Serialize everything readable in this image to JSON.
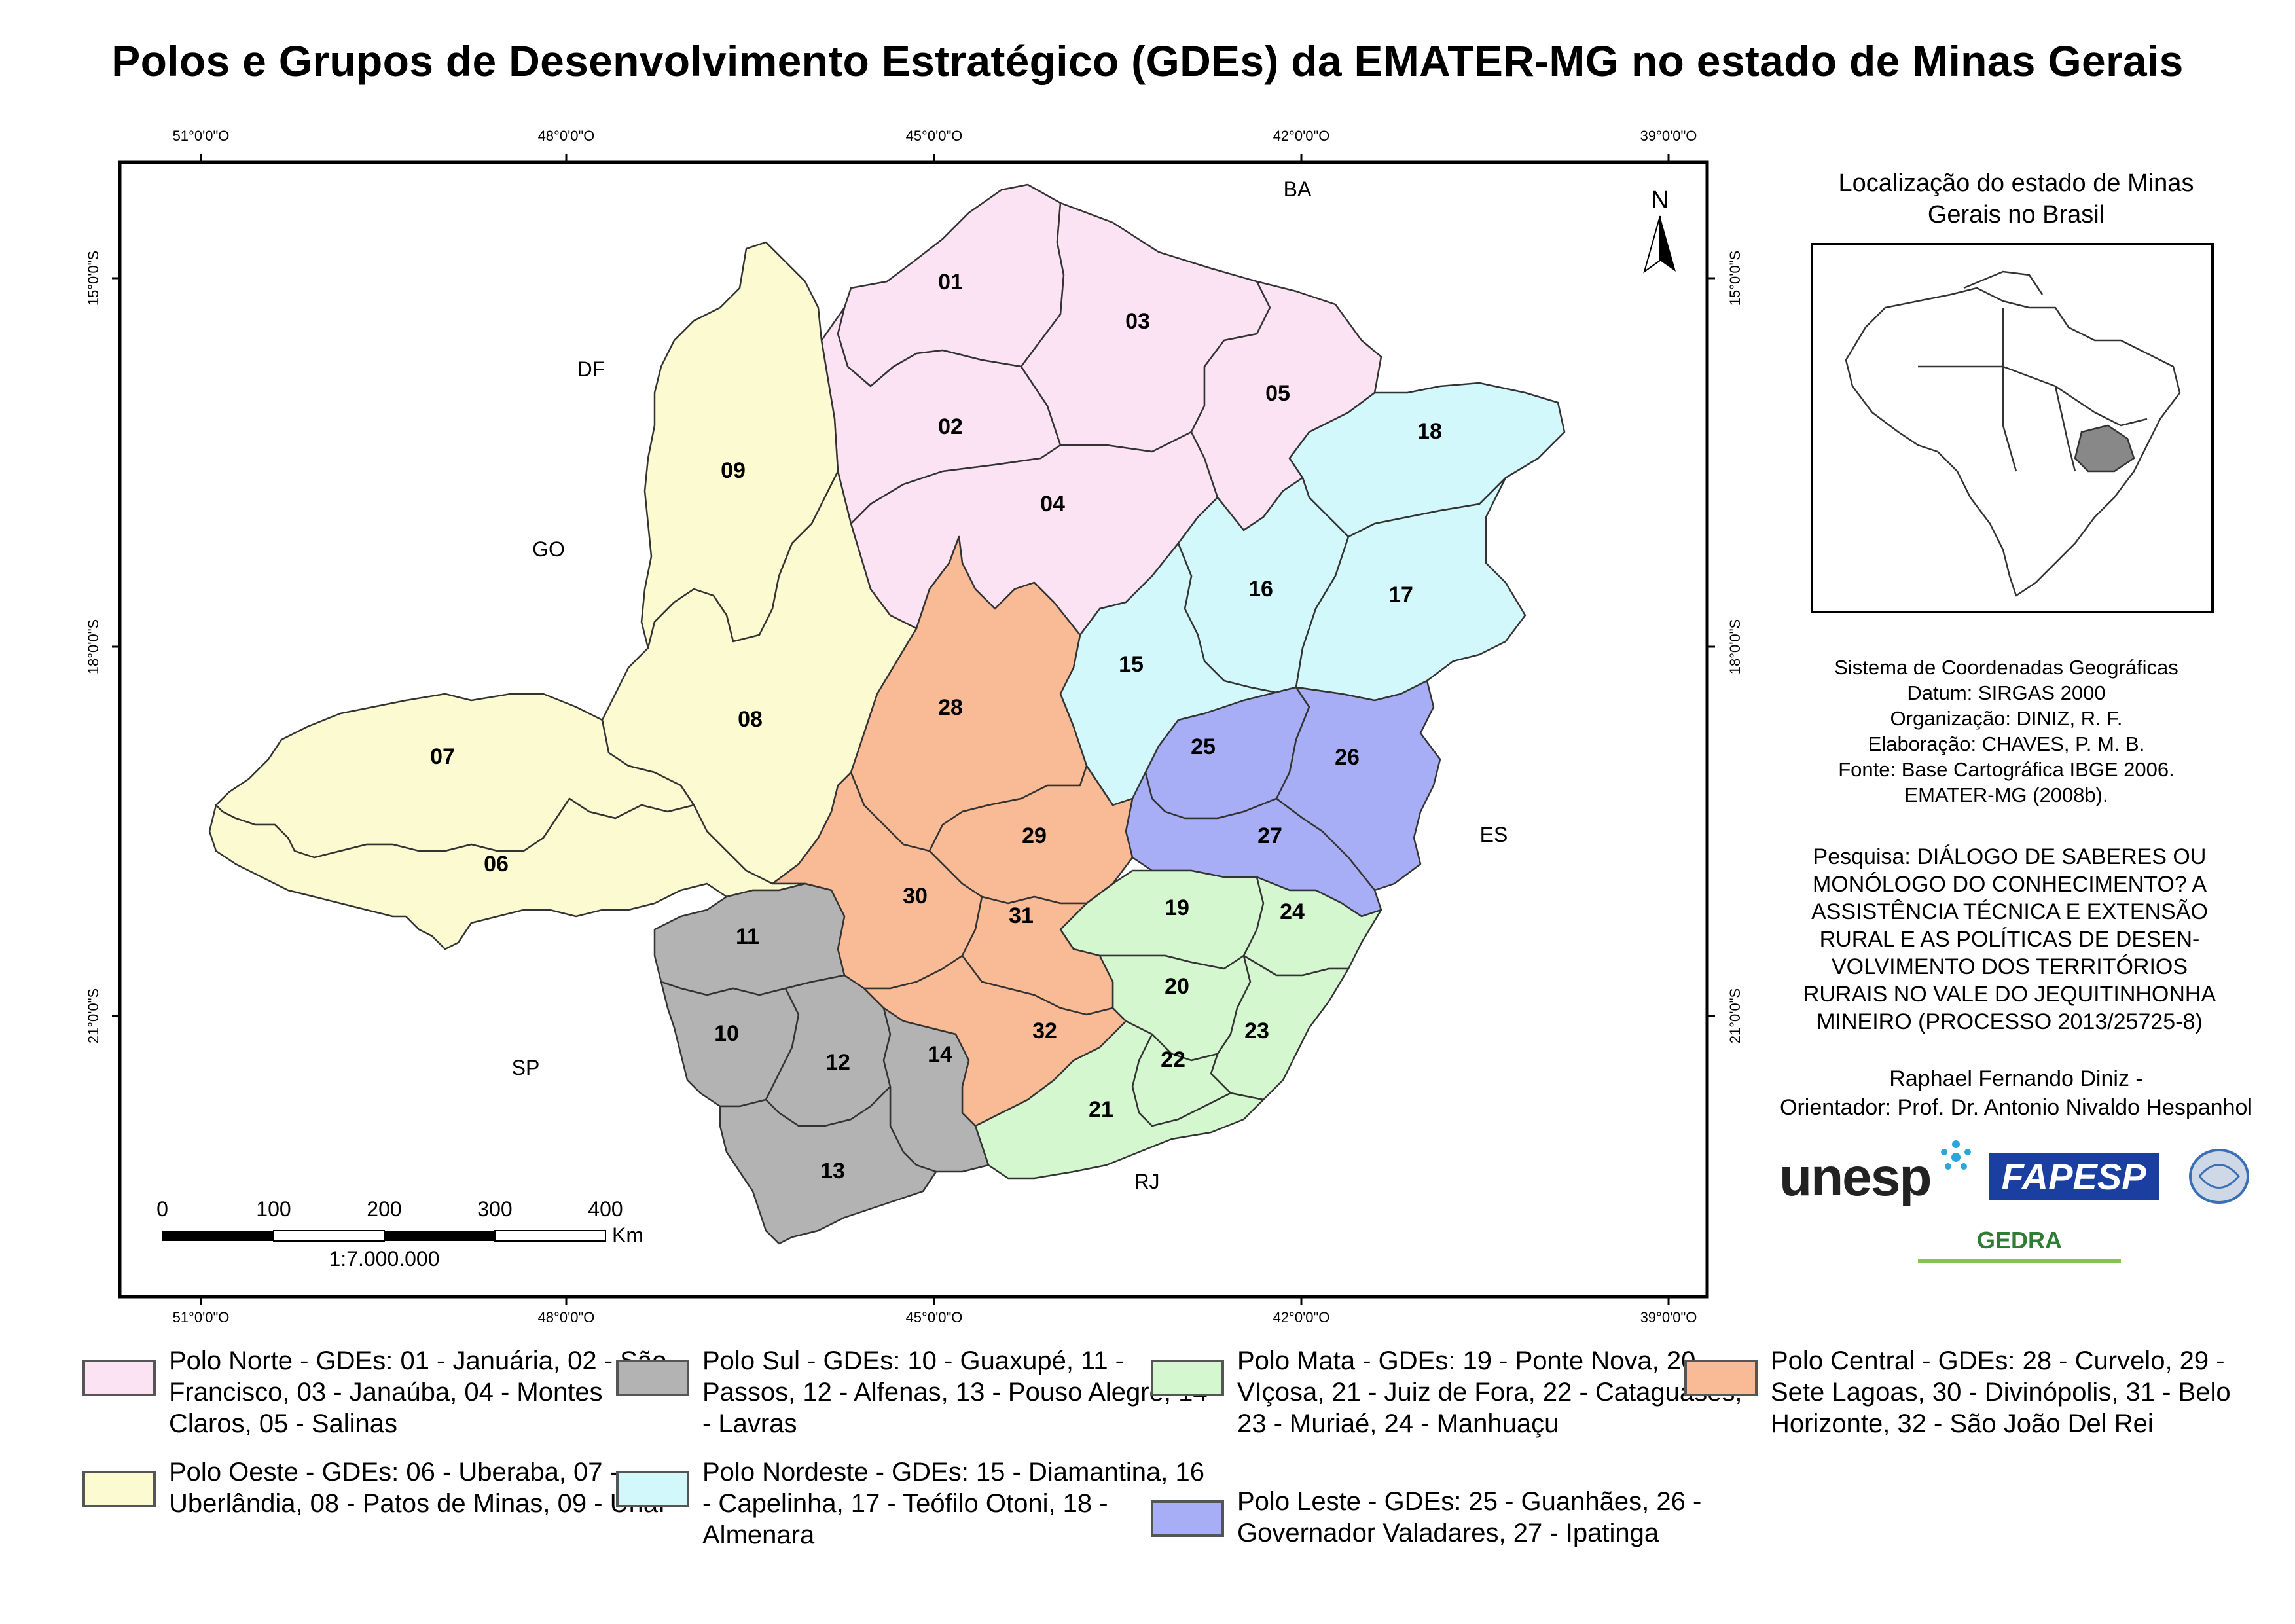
{
  "title": "Polos e Grupos de Desenvolvimento Estratégico (GDEs) da EMATER-MG no estado de Minas Gerais",
  "coords": {
    "top": [
      "51°0'0\"O",
      "48°0'0\"O",
      "45°0'0\"O",
      "42°0'0\"O",
      "39°0'0\"O"
    ],
    "bottom": [
      "51°0'0\"O",
      "48°0'0\"O",
      "45°0'0\"O",
      "42°0'0\"O",
      "39°0'0\"O"
    ],
    "left": [
      "15°0'0\"S",
      "18°0'0\"S",
      "21°0'0\"S"
    ],
    "right": [
      "15°0'0\"S",
      "18°0'0\"S",
      "21°0'0\"S"
    ]
  },
  "neighbors": {
    "ba": "BA",
    "df": "DF",
    "go": "GO",
    "sp": "SP",
    "rj": "RJ",
    "es": "ES"
  },
  "regions": {
    "r01": "01",
    "r02": "02",
    "r03": "03",
    "r04": "04",
    "r05": "05",
    "r06": "06",
    "r07": "07",
    "r08": "08",
    "r09": "09",
    "r10": "10",
    "r11": "11",
    "r12": "12",
    "r13": "13",
    "r14": "14",
    "r15": "15",
    "r16": "16",
    "r17": "17",
    "r18": "18",
    "r19": "19",
    "r20": "20",
    "r21": "21",
    "r22": "22",
    "r23": "23",
    "r24": "24",
    "r25": "25",
    "r26": "26",
    "r27": "27",
    "r28": "28",
    "r29": "29",
    "r30": "30",
    "r31": "31",
    "r32": "32"
  },
  "north_arrow": "N",
  "scale": {
    "ticks": [
      "0",
      "100",
      "200",
      "300",
      "400"
    ],
    "unit": "Km",
    "ratio": "1:7.000.000"
  },
  "locator_title": "Localização do estado de Minas Gerais no Brasil",
  "info": {
    "line1": "Sistema de Coordenadas Geográficas",
    "line2": "Datum: SIRGAS 2000",
    "line3": "Organização: DINIZ, R. F.",
    "line4": "Elaboração: CHAVES, P. M. B.",
    "line5": "Fonte: Base Cartográfica IBGE 2006.",
    "line6": "EMATER-MG (2008b)."
  },
  "research": "Pesquisa: DIÁLOGO DE SABERES OU MONÓLOGO DO CONHECIMENTO? A ASSISTÊNCIA TÉCNICA E EXTENSÃO RURAL E AS POLÍTICAS DE DESEN-VOLVIMENTO DOS TERRITÓRIOS RURAIS NO VALE DO JEQUITINHONHA MINEIRO (PROCESSO 2013/25725-8)",
  "author": "Raphael Fernando Diniz -",
  "advisor": "Orientador: Prof. Dr. Antonio Nivaldo Hespanhol",
  "logos": {
    "unesp": "unesp",
    "fapesp": "FAPESP",
    "gedra": "GEDRA"
  },
  "legend": {
    "norte": {
      "text": "Polo Norte - GDEs: 01 - Januária, 02 - São Francisco, 03 - Janaúba, 04 - Montes Claros, 05 - Salinas",
      "color": "#fbe3f3"
    },
    "oeste": {
      "text": "Polo Oeste - GDEs: 06 - Uberaba, 07 - Uberlândia, 08 - Patos de Minas, 09 - Unaí",
      "color": "#fbfad0"
    },
    "sul": {
      "text": "Polo Sul - GDEs: 10 - Guaxupé, 11 - Passos, 12 - Alfenas, 13 - Pouso Alegre, 14 - Lavras",
      "color": "#b3b3b3"
    },
    "nordeste": {
      "text": "Polo Nordeste - GDEs: 15 - Diamantina, 16 - Capelinha, 17 - Teófilo Otoni, 18 - Almenara",
      "color": "#d3f8fb"
    },
    "mata": {
      "text": "Polo Mata - GDEs: 19 - Ponte Nova, 20 - VIçosa, 21 - Juiz de Fora, 22 - Cataguases, 23 - Muriaé, 24 - Manhuaçu",
      "color": "#d5f7d0"
    },
    "leste": {
      "text": "Polo Leste - GDEs: 25 - Guanhães, 26 - Governador Valadares, 27 - Ipatinga",
      "color": "#a8aef5"
    },
    "central": {
      "text": "Polo Central - GDEs: 28 - Curvelo, 29 - Sete Lagoas, 30 - Divinópolis, 31 - Belo Horizonte, 32 - São João Del Rei",
      "color": "#f9bb95"
    }
  }
}
